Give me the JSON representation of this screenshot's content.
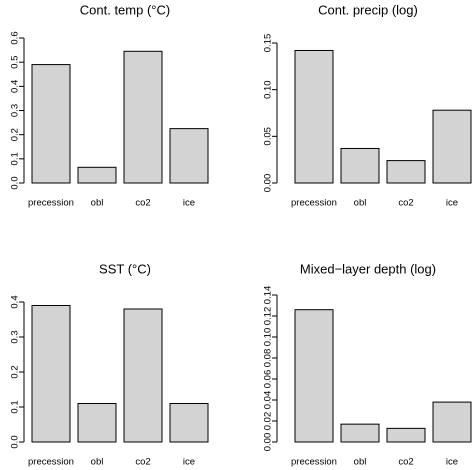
{
  "chart_data": [
    {
      "type": "bar",
      "title": "Cont. temp (°C)",
      "xlabel": "",
      "ylabel": "",
      "categories": [
        "precession",
        "obl",
        "co2",
        "ice"
      ],
      "values": [
        0.49,
        0.065,
        0.545,
        0.225
      ],
      "ylim": [
        0,
        0.6
      ],
      "yticks": [
        0.0,
        0.1,
        0.2,
        0.3,
        0.4,
        0.5,
        0.6
      ],
      "ytick_labels": [
        "0.0",
        "0.1",
        "0.2",
        "0.3",
        "0.4",
        "0.5",
        "0.6"
      ],
      "grid": false
    },
    {
      "type": "bar",
      "title": "Cont. precip (log)",
      "xlabel": "",
      "ylabel": "",
      "categories": [
        "precession",
        "obl",
        "co2",
        "ice"
      ],
      "values": [
        0.142,
        0.037,
        0.024,
        0.078
      ],
      "ylim": [
        0,
        0.15
      ],
      "yticks": [
        0.0,
        0.05,
        0.1,
        0.15
      ],
      "ytick_labels": [
        "0.00",
        "0.05",
        "0.10",
        "0.15"
      ],
      "grid": false
    },
    {
      "type": "bar",
      "title": "SST (°C)",
      "xlabel": "",
      "ylabel": "",
      "categories": [
        "precession",
        "obl",
        "co2",
        "ice"
      ],
      "values": [
        0.39,
        0.11,
        0.38,
        0.11
      ],
      "ylim": [
        0,
        0.4
      ],
      "yticks": [
        0.0,
        0.1,
        0.2,
        0.3,
        0.4
      ],
      "ytick_labels": [
        "0.0",
        "0.1",
        "0.2",
        "0.3",
        "0.4"
      ],
      "grid": false
    },
    {
      "type": "bar",
      "title": "Mixed−layer depth (log)",
      "xlabel": "",
      "ylabel": "",
      "categories": [
        "precession",
        "obl",
        "co2",
        "ice"
      ],
      "values": [
        0.126,
        0.017,
        0.013,
        0.038
      ],
      "ylim": [
        0,
        0.14
      ],
      "yticks": [
        0.0,
        0.02,
        0.04,
        0.06,
        0.08,
        0.1,
        0.12,
        0.14
      ],
      "ytick_labels": [
        "0.00",
        "0.02",
        "0.04",
        "0.06",
        "0.08",
        "0.10",
        "0.12",
        "0.14"
      ],
      "grid": false
    }
  ],
  "colors": {
    "bar_fill": "#d3d3d3",
    "bar_stroke": "#000000"
  }
}
